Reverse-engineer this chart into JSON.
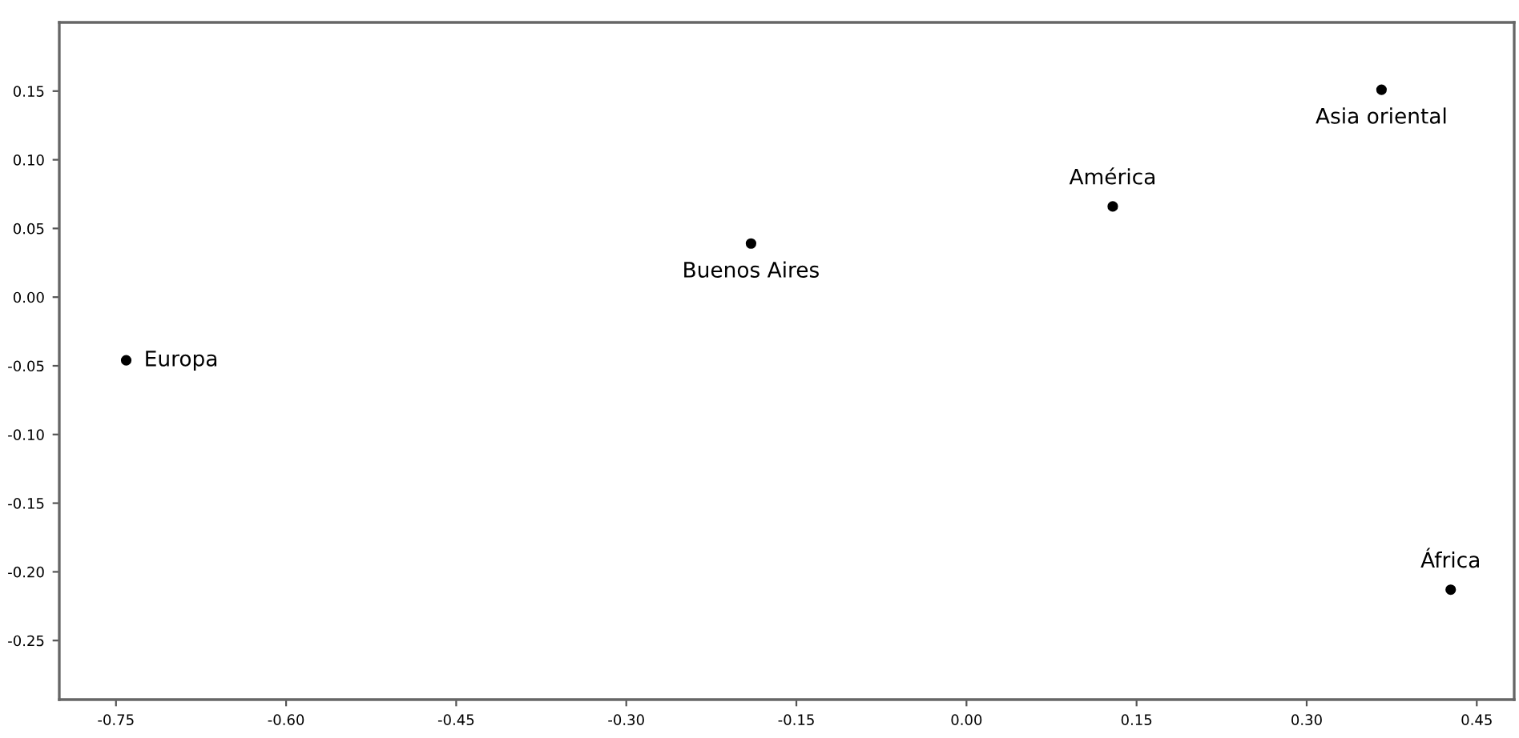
{
  "chart_data": {
    "type": "scatter",
    "x": [
      -0.741,
      -0.19,
      0.129,
      0.366,
      0.427
    ],
    "values": [
      -0.046,
      0.039,
      0.066,
      0.151,
      -0.213
    ],
    "color": "#000000",
    "marker": "circle",
    "grid": false,
    "legend": false,
    "annotations": [
      {
        "text": "Europa",
        "x": -0.741,
        "y": -0.046
      },
      {
        "text": "Buenos Aires",
        "x": -0.19,
        "y": 0.039
      },
      {
        "text": "América",
        "x": 0.129,
        "y": 0.066
      },
      {
        "text": "Asia oriental",
        "x": 0.366,
        "y": 0.151
      },
      {
        "text": "África",
        "x": 0.427,
        "y": -0.213
      }
    ],
    "xlim": [
      -0.8,
      0.483
    ],
    "ylim": [
      -0.293,
      0.2
    ],
    "xticks": [
      {
        "value": -0.75,
        "label": "-0.75"
      },
      {
        "value": -0.6,
        "label": "-0.60"
      },
      {
        "value": -0.45,
        "label": "-0.45"
      },
      {
        "value": -0.3,
        "label": "-0.30"
      },
      {
        "value": -0.15,
        "label": "-0.15"
      },
      {
        "value": 0,
        "label": "0.00"
      },
      {
        "value": 0.15,
        "label": "0.15"
      },
      {
        "value": 0.3,
        "label": "0.30"
      },
      {
        "value": 0.45,
        "label": "0.45"
      }
    ],
    "yticks": [
      {
        "value": -0.25,
        "label": "-0.25"
      },
      {
        "value": -0.2,
        "label": "-0.20"
      },
      {
        "value": -0.15,
        "label": "-0.15"
      },
      {
        "value": -0.1,
        "label": "-0.10"
      },
      {
        "value": -0.05,
        "label": "-0.05"
      },
      {
        "value": 0,
        "label": "0.00"
      },
      {
        "value": 0.05,
        "label": "0.05"
      },
      {
        "value": 0.1,
        "label": "0.10"
      },
      {
        "value": 0.15,
        "label": "0.15"
      }
    ]
  }
}
